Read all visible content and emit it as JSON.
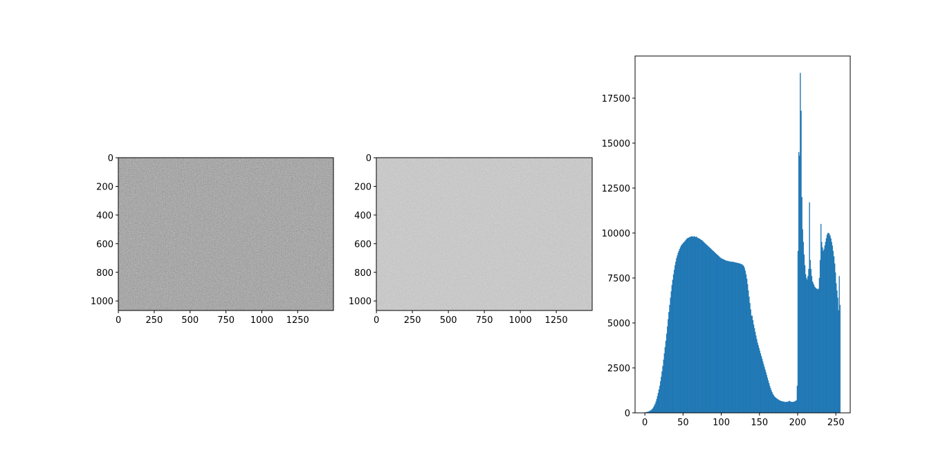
{
  "chart_data": [
    {
      "type": "image",
      "xlim": [
        -0.5,
        1499.5
      ],
      "ylim": [
        1066.5,
        -0.5
      ],
      "xticks": [
        0,
        250,
        500,
        750,
        1000,
        1250
      ],
      "yticks": [
        0,
        200,
        400,
        600,
        800,
        1000
      ],
      "tone": "dark"
    },
    {
      "type": "image",
      "xlim": [
        -0.5,
        1499.5
      ],
      "ylim": [
        1066.5,
        -0.5
      ],
      "xticks": [
        0,
        250,
        500,
        750,
        1000,
        1250
      ],
      "yticks": [
        0,
        200,
        400,
        600,
        800,
        1000
      ],
      "tone": "light"
    },
    {
      "type": "histogram",
      "color": "#1f77b4",
      "xlim": [
        -12.8,
        268.8
      ],
      "ylim": [
        0,
        19845
      ],
      "xticks": [
        0,
        50,
        100,
        150,
        200,
        250
      ],
      "yticks": [
        0,
        2500,
        5000,
        7500,
        10000,
        12500,
        15000,
        17500
      ],
      "bins": [
        0,
        1,
        2,
        3,
        4,
        5,
        6,
        7,
        8,
        9,
        10,
        11,
        12,
        13,
        14,
        15,
        16,
        17,
        18,
        19,
        20,
        21,
        22,
        23,
        24,
        25,
        26,
        27,
        28,
        29,
        30,
        31,
        32,
        33,
        34,
        35,
        36,
        37,
        38,
        39,
        40,
        41,
        42,
        43,
        44,
        45,
        46,
        47,
        48,
        49,
        50,
        51,
        52,
        53,
        54,
        55,
        56,
        57,
        58,
        59,
        60,
        61,
        62,
        63,
        64,
        65,
        66,
        67,
        68,
        69,
        70,
        71,
        72,
        73,
        74,
        75,
        76,
        77,
        78,
        79,
        80,
        81,
        82,
        83,
        84,
        85,
        86,
        87,
        88,
        89,
        90,
        91,
        92,
        93,
        94,
        95,
        96,
        97,
        98,
        99,
        100,
        101,
        102,
        103,
        104,
        105,
        106,
        107,
        108,
        109,
        110,
        111,
        112,
        113,
        114,
        115,
        116,
        117,
        118,
        119,
        120,
        121,
        122,
        123,
        124,
        125,
        126,
        127,
        128,
        129,
        130,
        131,
        132,
        133,
        134,
        135,
        136,
        137,
        138,
        139,
        140,
        141,
        142,
        143,
        144,
        145,
        146,
        147,
        148,
        149,
        150,
        151,
        152,
        153,
        154,
        155,
        156,
        157,
        158,
        159,
        160,
        161,
        162,
        163,
        164,
        165,
        166,
        167,
        168,
        169,
        170,
        171,
        172,
        173,
        174,
        175,
        176,
        177,
        178,
        179,
        180,
        181,
        182,
        183,
        184,
        185,
        186,
        187,
        188,
        189,
        190,
        191,
        192,
        193,
        194,
        195,
        196,
        197,
        198,
        199,
        200,
        201,
        202,
        203,
        204,
        205,
        206,
        207,
        208,
        209,
        210,
        211,
        212,
        213,
        214,
        215,
        216,
        217,
        218,
        219,
        220,
        221,
        222,
        223,
        224,
        225,
        226,
        227,
        228,
        229,
        230,
        231,
        232,
        233,
        234,
        235,
        236,
        237,
        238,
        239,
        240,
        241,
        242,
        243,
        244,
        245,
        246,
        247,
        248,
        249,
        250,
        251,
        252,
        253,
        254,
        255,
        256
      ],
      "values": [
        20,
        30,
        40,
        50,
        60,
        80,
        100,
        130,
        160,
        200,
        250,
        320,
        400,
        500,
        620,
        760,
        920,
        1100,
        1300,
        1500,
        1750,
        2000,
        2300,
        2600,
        2950,
        3300,
        3650,
        4000,
        4400,
        4800,
        5200,
        5600,
        6000,
        6400,
        6750,
        7100,
        7400,
        7700,
        7950,
        8200,
        8400,
        8600,
        8750,
        8900,
        9000,
        9100,
        9200,
        9300,
        9350,
        9400,
        9450,
        9500,
        9550,
        9600,
        9650,
        9700,
        9720,
        9740,
        9760,
        9780,
        9800,
        9820,
        9800,
        9780,
        9820,
        9800,
        9760,
        9800,
        9750,
        9720,
        9700,
        9680,
        9650,
        9620,
        9600,
        9560,
        9520,
        9480,
        9440,
        9400,
        9360,
        9320,
        9280,
        9240,
        9200,
        9160,
        9120,
        9080,
        9040,
        9000,
        8960,
        8920,
        8880,
        8840,
        8800,
        8760,
        8720,
        8680,
        8640,
        8600,
        8580,
        8560,
        8540,
        8520,
        8500,
        8480,
        8460,
        8450,
        8440,
        8430,
        8420,
        8410,
        8400,
        8400,
        8400,
        8390,
        8380,
        8370,
        8360,
        8350,
        8340,
        8330,
        8320,
        8310,
        8300,
        8280,
        8260,
        8240,
        8200,
        8150,
        8050,
        7900,
        7700,
        7450,
        7150,
        6800,
        6450,
        6100,
        5750,
        5400,
        5400,
        5150,
        4900,
        4700,
        4500,
        4300,
        4100,
        3900,
        3750,
        3600,
        3450,
        3300,
        3150,
        3000,
        2850,
        2700,
        2550,
        2400,
        2250,
        2100,
        1950,
        1800,
        1650,
        1500,
        1380,
        1260,
        1150,
        1050,
        980,
        920,
        870,
        830,
        800,
        770,
        740,
        710,
        690,
        670,
        650,
        640,
        630,
        620,
        610,
        600,
        600,
        600,
        610,
        620,
        640,
        660,
        620,
        610,
        600,
        600,
        610,
        620,
        640,
        660,
        700,
        1500,
        9000,
        14500,
        14300,
        18900,
        16800,
        12000,
        10200,
        9500,
        8800,
        8200,
        7700,
        7500,
        7400,
        7600,
        8000,
        11700,
        8500,
        8000,
        7600,
        7300,
        7200,
        7100,
        7000,
        6950,
        6900,
        6900,
        6850,
        6900,
        7500,
        8500,
        10500,
        9500,
        9200,
        9000,
        9100,
        9300,
        9500,
        9700,
        9900,
        10000,
        10000,
        9950,
        9850,
        9700,
        9500,
        9300,
        9000,
        8700,
        8300,
        7800,
        7200,
        6800,
        6400,
        5700,
        7600,
        6000
      ]
    }
  ]
}
